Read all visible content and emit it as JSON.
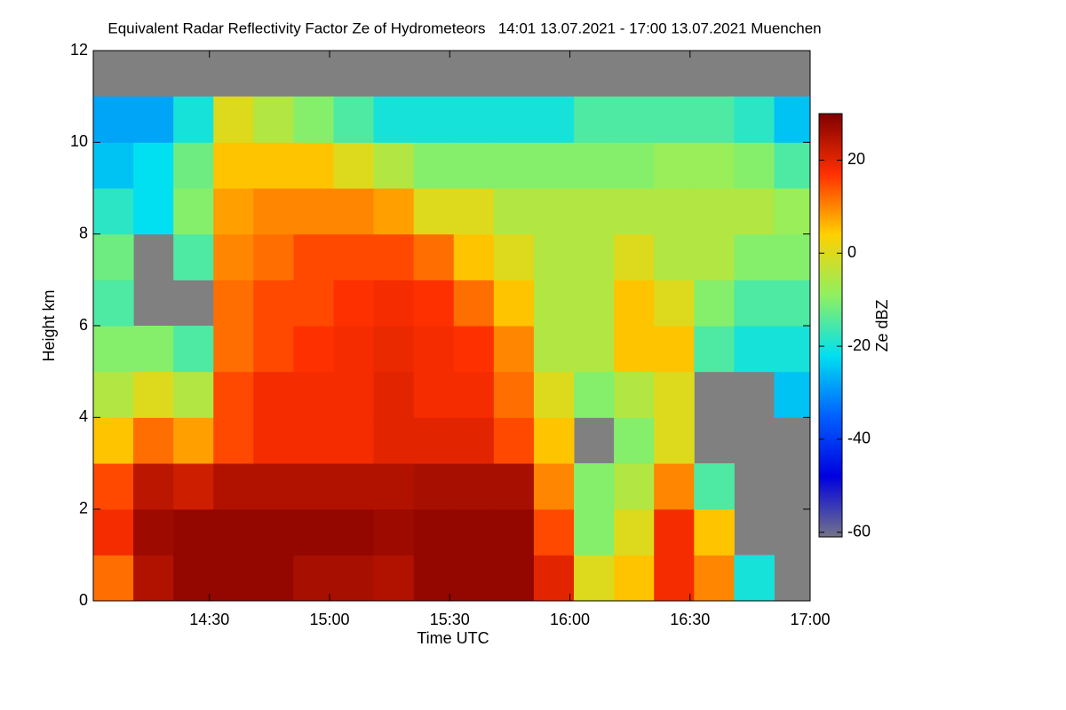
{
  "chart_data": {
    "type": "heatmap",
    "title": "Equivalent Radar Reflectivity Factor Ze of Hydrometeors   14:01 13.07.2021 - 17:00 13.07.2021 Muenchen",
    "x_label": "Time UTC",
    "y_label": "Height km",
    "colorbar_label": "Ze dBZ",
    "x_edges": [
      841,
      851,
      861,
      871,
      881,
      891,
      901,
      911,
      921,
      931,
      941,
      951,
      961,
      971,
      981,
      991,
      1001,
      1011,
      1020
    ],
    "y_edges": [
      0,
      1,
      2,
      3,
      4,
      5,
      6,
      7,
      8,
      9,
      10,
      11,
      12
    ],
    "z": [
      [
        12,
        18,
        15,
        5,
        -5,
        -10,
        -15,
        -12,
        -18,
        -25,
        -28,
        null
      ],
      [
        25,
        27,
        24,
        12,
        0,
        -10,
        null,
        null,
        -22,
        -22,
        -28,
        null
      ],
      [
        28,
        28,
        22,
        8,
        -5,
        -15,
        null,
        -15,
        -10,
        -12,
        -20,
        null
      ],
      [
        28,
        28,
        25,
        15,
        15,
        12,
        12,
        10,
        8,
        5,
        0,
        null
      ],
      [
        28,
        28,
        25,
        18,
        18,
        15,
        15,
        12,
        10,
        5,
        -5,
        null
      ],
      [
        26,
        28,
        25,
        18,
        18,
        17,
        15,
        15,
        10,
        5,
        -10,
        null
      ],
      [
        26,
        28,
        25,
        18,
        18,
        18,
        17,
        15,
        10,
        0,
        -15,
        null
      ],
      [
        25,
        27,
        25,
        20,
        20,
        19,
        18,
        15,
        8,
        -5,
        -20,
        null
      ],
      [
        28,
        28,
        26,
        20,
        18,
        18,
        17,
        12,
        0,
        -10,
        -20,
        null
      ],
      [
        28,
        28,
        26,
        20,
        18,
        17,
        12,
        5,
        0,
        -10,
        -20,
        null
      ],
      [
        28,
        28,
        26,
        15,
        12,
        10,
        5,
        0,
        -5,
        -10,
        -20,
        null
      ],
      [
        20,
        15,
        10,
        5,
        0,
        -5,
        -5,
        -5,
        -5,
        -10,
        -20,
        null
      ],
      [
        0,
        -10,
        -10,
        null,
        -10,
        -5,
        -5,
        -5,
        -5,
        -10,
        -15,
        null
      ],
      [
        5,
        0,
        -5,
        -10,
        -5,
        5,
        5,
        0,
        -5,
        -10,
        -15,
        null
      ],
      [
        18,
        18,
        10,
        0,
        0,
        5,
        0,
        -5,
        -5,
        -8,
        -15,
        null
      ],
      [
        10,
        5,
        -15,
        null,
        null,
        -15,
        -10,
        -5,
        -5,
        -8,
        -15,
        null
      ],
      [
        -20,
        null,
        null,
        null,
        null,
        -20,
        -15,
        -10,
        -5,
        -10,
        -18,
        null
      ],
      [
        null,
        null,
        null,
        null,
        -25,
        -20,
        -15,
        -10,
        -8,
        -15,
        -25,
        null
      ]
    ],
    "xlim": [
      841,
      1020
    ],
    "xticks": [
      {
        "value": 870,
        "label": "14:30"
      },
      {
        "value": 900,
        "label": "15:00"
      },
      {
        "value": 930,
        "label": "15:30"
      },
      {
        "value": 960,
        "label": "16:00"
      },
      {
        "value": 990,
        "label": "16:30"
      },
      {
        "value": 1020,
        "label": "17:00"
      }
    ],
    "ylim": [
      0,
      12
    ],
    "yticks": [
      0,
      2,
      4,
      6,
      8,
      10,
      12
    ],
    "zlim": [
      -61,
      30
    ],
    "zticks": [
      -60,
      -40,
      -20,
      0,
      20
    ],
    "colormap": [
      "#74748a",
      "#0000e0",
      "#0060ff",
      "#00e0f0",
      "#90f060",
      "#ffd000",
      "#ff3000",
      "#800000"
    ],
    "nodata_color": "#808080"
  }
}
